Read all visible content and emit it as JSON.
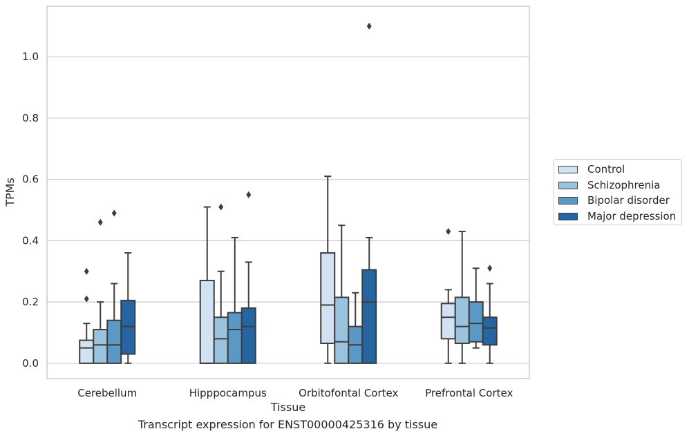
{
  "chart_data": {
    "type": "box",
    "title": "",
    "xlabel": "Tissue",
    "ylabel": "TPMs",
    "ylim": [
      -0.05,
      1.165
    ],
    "yticks": [
      0.0,
      0.2,
      0.4,
      0.6,
      0.8,
      1.0
    ],
    "ytick_labels": [
      "0.0",
      "0.2",
      "0.4",
      "0.6",
      "0.8",
      "1.0"
    ],
    "grid": "horizontal",
    "legend_position": "outside-right",
    "categories": [
      "Cerebellum",
      "Hipppocampus",
      "Orbitofontal Cortex",
      "Prefrontal Cortex"
    ],
    "series": [
      {
        "name": "Control",
        "color": "#d2e2f2",
        "boxes": [
          {
            "whislo": 0.0,
            "q1": 0.0,
            "med": 0.05,
            "q3": 0.075,
            "whishi": 0.13,
            "fliers": [
              0.21,
              0.3
            ]
          },
          {
            "whislo": 0.0,
            "q1": 0.0,
            "med": 0.0,
            "q3": 0.27,
            "whishi": 0.51,
            "fliers": []
          },
          {
            "whislo": 0.0,
            "q1": 0.065,
            "med": 0.19,
            "q3": 0.36,
            "whishi": 0.61,
            "fliers": []
          },
          {
            "whislo": 0.0,
            "q1": 0.08,
            "med": 0.15,
            "q3": 0.195,
            "whishi": 0.24,
            "fliers": [
              0.43
            ]
          }
        ]
      },
      {
        "name": "Schizophrenia",
        "color": "#9ac4dd",
        "boxes": [
          {
            "whislo": 0.0,
            "q1": 0.0,
            "med": 0.06,
            "q3": 0.11,
            "whishi": 0.2,
            "fliers": [
              0.46
            ]
          },
          {
            "whislo": 0.0,
            "q1": 0.0,
            "med": 0.08,
            "q3": 0.15,
            "whishi": 0.3,
            "fliers": [
              0.51
            ]
          },
          {
            "whislo": 0.0,
            "q1": 0.0,
            "med": 0.07,
            "q3": 0.215,
            "whishi": 0.45,
            "fliers": []
          },
          {
            "whislo": 0.0,
            "q1": 0.065,
            "med": 0.12,
            "q3": 0.215,
            "whishi": 0.43,
            "fliers": []
          }
        ]
      },
      {
        "name": "Bipolar disorder",
        "color": "#5a98c5",
        "boxes": [
          {
            "whislo": 0.0,
            "q1": 0.0,
            "med": 0.06,
            "q3": 0.14,
            "whishi": 0.26,
            "fliers": [
              0.49
            ]
          },
          {
            "whislo": 0.0,
            "q1": 0.0,
            "med": 0.11,
            "q3": 0.165,
            "whishi": 0.41,
            "fliers": []
          },
          {
            "whislo": 0.0,
            "q1": 0.0,
            "med": 0.06,
            "q3": 0.12,
            "whishi": 0.23,
            "fliers": []
          },
          {
            "whislo": 0.05,
            "q1": 0.07,
            "med": 0.13,
            "q3": 0.2,
            "whishi": 0.31,
            "fliers": []
          }
        ]
      },
      {
        "name": "Major depression",
        "color": "#2565a2",
        "boxes": [
          {
            "whislo": 0.0,
            "q1": 0.03,
            "med": 0.12,
            "q3": 0.205,
            "whishi": 0.36,
            "fliers": []
          },
          {
            "whislo": 0.0,
            "q1": 0.0,
            "med": 0.12,
            "q3": 0.18,
            "whishi": 0.33,
            "fliers": [
              0.55
            ]
          },
          {
            "whislo": 0.0,
            "q1": 0.0,
            "med": 0.2,
            "q3": 0.305,
            "whishi": 0.41,
            "fliers": [
              1.1
            ]
          },
          {
            "whislo": 0.0,
            "q1": 0.06,
            "med": 0.115,
            "q3": 0.15,
            "whishi": 0.26,
            "fliers": [
              0.31
            ]
          }
        ]
      }
    ]
  },
  "caption": "Transcript expression for ENST00000425316 by tissue"
}
